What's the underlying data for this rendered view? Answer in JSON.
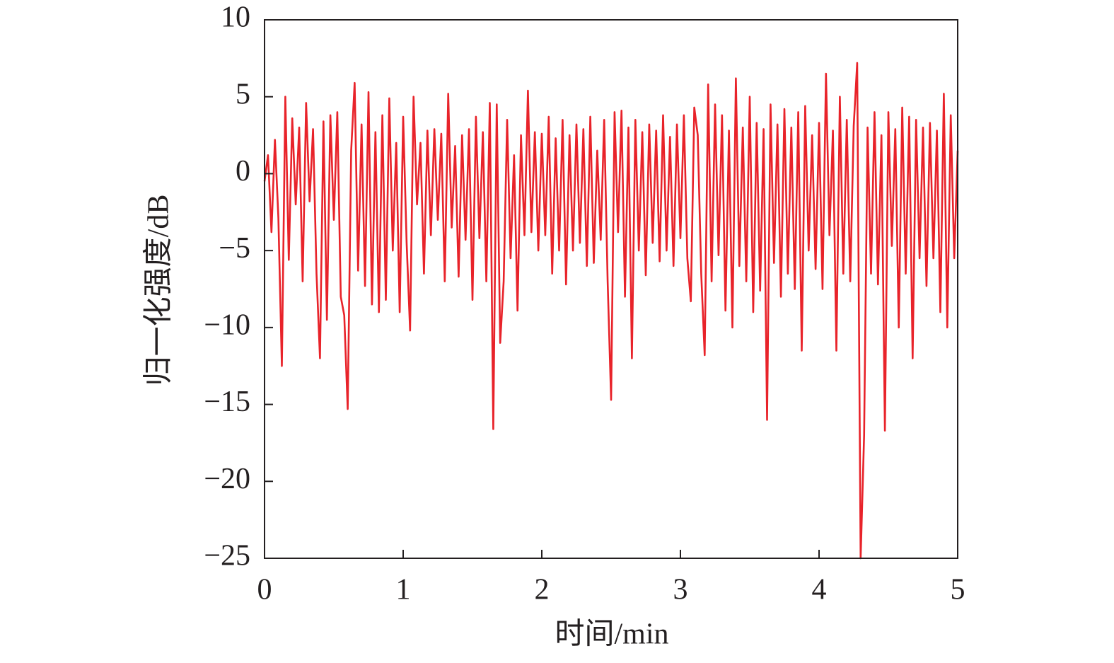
{
  "chart_data": {
    "type": "line",
    "xlabel": "时间/min",
    "ylabel": "归一化强度/dB",
    "x": [
      0,
      0.025,
      0.05,
      0.075,
      0.1,
      0.125,
      0.15,
      0.175,
      0.2,
      0.225,
      0.25,
      0.275,
      0.3,
      0.325,
      0.35,
      0.375,
      0.4,
      0.425,
      0.45,
      0.475,
      0.5,
      0.525,
      0.55,
      0.575,
      0.6,
      0.625,
      0.65,
      0.675,
      0.7,
      0.725,
      0.75,
      0.775,
      0.8,
      0.825,
      0.85,
      0.875,
      0.9,
      0.925,
      0.95,
      0.975,
      1,
      1.025,
      1.05,
      1.075,
      1.1,
      1.125,
      1.15,
      1.175,
      1.2,
      1.225,
      1.25,
      1.275,
      1.3,
      1.325,
      1.35,
      1.375,
      1.4,
      1.425,
      1.45,
      1.475,
      1.5,
      1.525,
      1.55,
      1.575,
      1.6,
      1.625,
      1.65,
      1.675,
      1.7,
      1.725,
      1.75,
      1.775,
      1.8,
      1.825,
      1.85,
      1.875,
      1.9,
      1.925,
      1.95,
      1.975,
      2,
      2.025,
      2.05,
      2.075,
      2.1,
      2.125,
      2.15,
      2.175,
      2.2,
      2.225,
      2.25,
      2.275,
      2.3,
      2.325,
      2.35,
      2.375,
      2.4,
      2.425,
      2.45,
      2.475,
      2.5,
      2.525,
      2.55,
      2.575,
      2.6,
      2.625,
      2.65,
      2.675,
      2.7,
      2.725,
      2.75,
      2.775,
      2.8,
      2.825,
      2.85,
      2.875,
      2.9,
      2.925,
      2.95,
      2.975,
      3,
      3.025,
      3.05,
      3.075,
      3.1,
      3.125,
      3.15,
      3.175,
      3.2,
      3.225,
      3.25,
      3.275,
      3.3,
      3.325,
      3.35,
      3.375,
      3.4,
      3.425,
      3.45,
      3.475,
      3.5,
      3.525,
      3.55,
      3.575,
      3.6,
      3.625,
      3.65,
      3.675,
      3.7,
      3.725,
      3.75,
      3.775,
      3.8,
      3.825,
      3.85,
      3.875,
      3.9,
      3.925,
      3.95,
      3.975,
      4,
      4.025,
      4.05,
      4.075,
      4.1,
      4.125,
      4.15,
      4.175,
      4.2,
      4.225,
      4.25,
      4.275,
      4.3,
      4.325,
      4.35,
      4.375,
      4.4,
      4.425,
      4.45,
      4.475,
      4.5,
      4.525,
      4.55,
      4.575,
      4.6,
      4.625,
      4.65,
      4.675,
      4.7,
      4.725,
      4.75,
      4.775,
      4.8,
      4.825,
      4.85,
      4.875,
      4.9,
      4.925,
      4.95,
      4.975,
      5
    ],
    "values": [
      -0.5,
      1.2,
      -3.8,
      2.2,
      -2.9,
      -12.5,
      5.0,
      -5.6,
      3.6,
      -2.0,
      3.0,
      -7.0,
      4.6,
      -1.8,
      2.9,
      -6.5,
      -12.0,
      3.4,
      -9.5,
      3.8,
      -3.0,
      4.0,
      -8.0,
      -9.2,
      -15.3,
      1.5,
      5.9,
      -6.3,
      3.2,
      -7.3,
      5.3,
      -8.5,
      2.7,
      -9.0,
      3.8,
      -8.2,
      4.9,
      -5.0,
      2.0,
      -9.0,
      3.7,
      -4.5,
      -10.2,
      5.0,
      -2.0,
      2.0,
      -6.5,
      2.8,
      -4.0,
      2.9,
      -3.0,
      2.6,
      -7.0,
      5.2,
      -3.5,
      1.8,
      -6.7,
      2.5,
      -4.3,
      2.9,
      -8.2,
      3.7,
      -4.2,
      2.7,
      -7.0,
      4.6,
      -16.6,
      4.5,
      -11.0,
      -7.0,
      3.5,
      -5.5,
      1.2,
      -8.9,
      2.5,
      -4.0,
      5.4,
      -3.8,
      2.7,
      -5.0,
      2.6,
      -4.0,
      3.7,
      -6.5,
      2.3,
      -5.0,
      3.5,
      -7.2,
      2.5,
      -5.0,
      3.2,
      -4.5,
      2.9,
      -6.0,
      3.7,
      -5.8,
      1.5,
      -4.3,
      3.5,
      -7.0,
      -14.7,
      4.0,
      -3.8,
      4.1,
      -8.0,
      3.0,
      -12.0,
      3.5,
      -5.0,
      2.7,
      -6.6,
      3.2,
      -4.5,
      2.8,
      -5.7,
      3.8,
      -5.0,
      2.4,
      -6.0,
      3.2,
      -4.2,
      3.8,
      -5.5,
      -8.3,
      4.3,
      2.5,
      -6.5,
      -11.8,
      5.8,
      -7.0,
      4.5,
      -5.3,
      3.8,
      -8.9,
      2.8,
      -10.0,
      6.2,
      -6.0,
      3.0,
      -7.0,
      5.0,
      -9.0,
      3.3,
      -7.6,
      2.9,
      -16.0,
      4.5,
      -5.8,
      3.2,
      -8.0,
      4.2,
      -6.5,
      3.0,
      -7.5,
      4.0,
      -11.5,
      4.4,
      -5.0,
      2.5,
      -6.2,
      3.3,
      -7.5,
      6.5,
      -4.0,
      2.8,
      -11.5,
      5.0,
      -6.5,
      3.5,
      -7.0,
      3.1,
      7.2,
      -25.0,
      -17.0,
      3.0,
      -6.5,
      4.0,
      -7.2,
      2.5,
      -16.7,
      4.0,
      -4.7,
      2.9,
      -10.0,
      4.3,
      -6.5,
      3.7,
      -12.0,
      3.5,
      -5.5,
      3.0,
      -7.3,
      3.3,
      -5.5,
      2.8,
      -9.0,
      5.2,
      -10.0,
      3.8,
      -5.5,
      1.5
    ],
    "color": "#e8232a",
    "xlim": [
      0,
      5
    ],
    "xticks": [
      0,
      1,
      2,
      3,
      4,
      5
    ],
    "ylim": [
      -25,
      10
    ],
    "yticks": [
      10,
      5,
      0,
      {
        "value": -5,
        "label": "−5"
      },
      {
        "value": -10,
        "label": "−10"
      },
      {
        "value": -15,
        "label": "−15"
      },
      {
        "value": -20,
        "label": "−20"
      },
      {
        "value": -25,
        "label": "−25"
      }
    ]
  }
}
